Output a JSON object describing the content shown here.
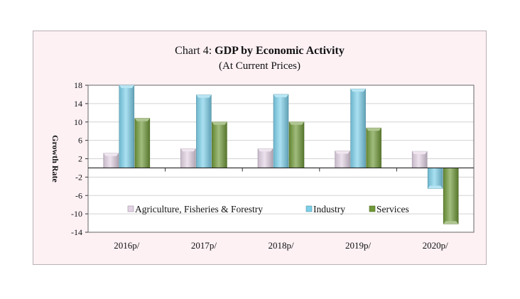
{
  "title_prefix": "Chart 4: ",
  "title_main": "GDP by Economic Activity",
  "subtitle": "(At Current Prices)",
  "chart_data": {
    "type": "bar",
    "title": "Chart 4: GDP by Economic Activity",
    "subtitle": "(At Current Prices)",
    "categories": [
      "2016p/",
      "2017p/",
      "2018p/",
      "2019p/",
      "2020p/"
    ],
    "series": [
      {
        "name": "Agriculture, Fisheries & Forestry",
        "color": "#e2d2e4",
        "values": [
          3.2,
          4.2,
          4.2,
          3.7,
          3.6
        ]
      },
      {
        "name": "Industry",
        "color": "#7ccfe9",
        "values": [
          18.0,
          15.9,
          16.0,
          17.2,
          -4.5
        ]
      },
      {
        "name": "Services",
        "color": "#6f9838",
        "values": [
          10.8,
          10.0,
          10.0,
          8.7,
          -12.2
        ]
      }
    ],
    "xlabel": "",
    "ylabel": "Growth Rate",
    "ylim": [
      -14,
      18
    ],
    "yticks": [
      18,
      14,
      10,
      6,
      2,
      -2,
      -6,
      -10,
      -14
    ],
    "grid": true,
    "legend_position": "bottom-inside"
  }
}
